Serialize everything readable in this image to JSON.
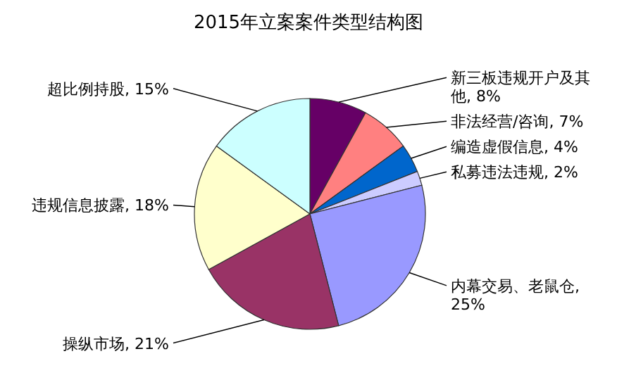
{
  "chart_data": {
    "type": "pie",
    "title": "2015年立案案件类型结构图",
    "categories": [
      "新三板违规开户及其他",
      "非法经营/咨询",
      "编造虚假信息",
      "私募违法违规",
      "内幕交易、老鼠仓",
      "操纵市场",
      "违规信息披露",
      "超比例持股"
    ],
    "values": [
      8,
      7,
      4,
      2,
      25,
      21,
      18,
      15
    ],
    "value_labels": [
      ", 8%",
      ", 7%",
      ", 4%",
      ", 2%",
      ", 25%",
      ", 21%",
      ", 18%",
      ", 15%"
    ],
    "colors": [
      "#660066",
      "#ff8080",
      "#0066cc",
      "#ccccff",
      "#9999ff",
      "#993366",
      "#ffffcc",
      "#ccffff"
    ],
    "legend": false
  }
}
